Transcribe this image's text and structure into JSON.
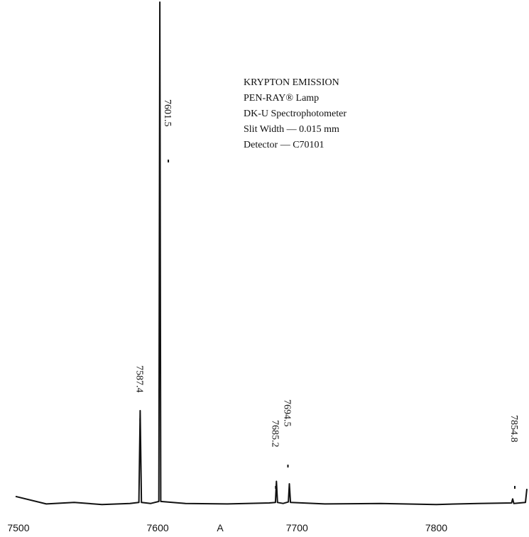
{
  "chart_data": {
    "type": "line",
    "annotations": [
      "KRYPTON EMISSION",
      "PEN-RAY® Lamp",
      "DK-U Spectrophotometer",
      "Slit Width — 0.015 mm",
      "Detector — C70101"
    ],
    "x_label": "A",
    "xlim": [
      7498,
      7865
    ],
    "xticks": [
      7500,
      7600,
      7700,
      7800
    ],
    "ylim": [
      0,
      100
    ],
    "peak_labels": [
      7587.4,
      7601.5,
      7685.2,
      7694.5,
      7854.8
    ],
    "series": [
      {
        "color": "#111111",
        "x": [
          7498,
          7520,
          7540,
          7560,
          7580,
          7586.5,
          7587.4,
          7588.3,
          7595,
          7600.8,
          7601.5,
          7602.2,
          7620,
          7650,
          7680,
          7684.5,
          7685.2,
          7686,
          7690,
          7693.8,
          7694.5,
          7695.3,
          7720,
          7760,
          7800,
          7830,
          7854,
          7854.8,
          7855.6,
          7864,
          7865
        ],
        "values": [
          2,
          0.5,
          0.8,
          0.4,
          0.6,
          0.8,
          19,
          0.8,
          0.6,
          1,
          100,
          1,
          0.6,
          0.5,
          0.7,
          0.8,
          5,
          0.8,
          0.6,
          0.9,
          4.5,
          0.8,
          0.5,
          0.6,
          0.4,
          0.6,
          0.7,
          1.5,
          0.6,
          0.8,
          3.5
        ]
      }
    ]
  }
}
